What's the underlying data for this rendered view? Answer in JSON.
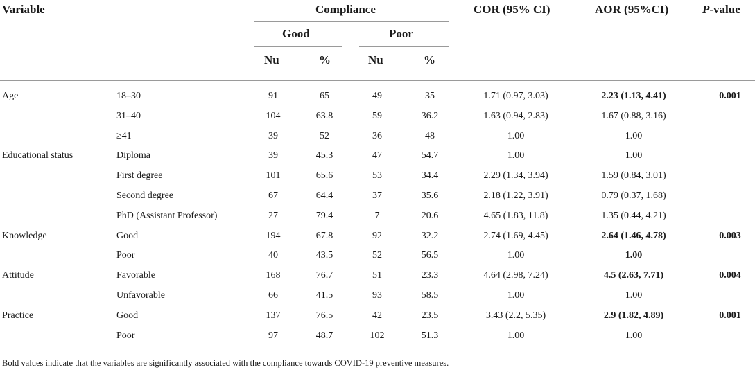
{
  "header": {
    "variable": "Variable",
    "compliance": "Compliance",
    "good": "Good",
    "poor": "Poor",
    "nu": "Nu",
    "pct": "%",
    "cor": "COR (95% CI)",
    "aor": "AOR (95%CI)",
    "pvalue_italic": "P",
    "pvalue_rest": "-value"
  },
  "rows": [
    {
      "variable": "Age",
      "category": "18–30",
      "good_n": "91",
      "good_pct": "65",
      "poor_n": "49",
      "poor_pct": "35",
      "cor": "1.71 (0.97, 3.03)",
      "aor": "2.23 (1.13, 4.41)",
      "p": "0.001",
      "aor_bold": true
    },
    {
      "variable": "",
      "category": "31–40",
      "good_n": "104",
      "good_pct": "63.8",
      "poor_n": "59",
      "poor_pct": "36.2",
      "cor": "1.63 (0.94, 2.83)",
      "aor": "1.67 (0.88, 3.16)",
      "p": "",
      "aor_bold": false
    },
    {
      "variable": "",
      "category": "≥41",
      "good_n": "39",
      "good_pct": "52",
      "poor_n": "36",
      "poor_pct": "48",
      "cor": "1.00",
      "aor": "1.00",
      "p": "",
      "aor_bold": false
    },
    {
      "variable": "Educational status",
      "category": "Diploma",
      "good_n": "39",
      "good_pct": "45.3",
      "poor_n": "47",
      "poor_pct": "54.7",
      "cor": "1.00",
      "aor": "1.00",
      "p": "",
      "aor_bold": false
    },
    {
      "variable": "",
      "category": "First degree",
      "good_n": "101",
      "good_pct": "65.6",
      "poor_n": "53",
      "poor_pct": "34.4",
      "cor": "2.29 (1.34, 3.94)",
      "aor": "1.59 (0.84, 3.01)",
      "p": "",
      "aor_bold": false
    },
    {
      "variable": "",
      "category": "Second degree",
      "good_n": "67",
      "good_pct": "64.4",
      "poor_n": "37",
      "poor_pct": "35.6",
      "cor": "2.18 (1.22, 3.91)",
      "aor": "0.79 (0.37, 1.68)",
      "p": "",
      "aor_bold": false
    },
    {
      "variable": "",
      "category": "PhD (Assistant Professor)",
      "good_n": "27",
      "good_pct": "79.4",
      "poor_n": "7",
      "poor_pct": "20.6",
      "cor": "4.65 (1.83, 11.8)",
      "aor": "1.35 (0.44, 4.21)",
      "p": "",
      "aor_bold": false
    },
    {
      "variable": "Knowledge",
      "category": "Good",
      "good_n": "194",
      "good_pct": "67.8",
      "poor_n": "92",
      "poor_pct": "32.2",
      "cor": "2.74 (1.69, 4.45)",
      "aor": "2.64 (1.46, 4.78)",
      "p": "0.003",
      "aor_bold": true
    },
    {
      "variable": "",
      "category": "Poor",
      "good_n": "40",
      "good_pct": "43.5",
      "poor_n": "52",
      "poor_pct": "56.5",
      "cor": "1.00",
      "aor": "1.00",
      "p": "",
      "aor_bold": true
    },
    {
      "variable": "Attitude",
      "category": "Favorable",
      "good_n": "168",
      "good_pct": "76.7",
      "poor_n": "51",
      "poor_pct": "23.3",
      "cor": "4.64 (2.98, 7.24)",
      "aor": "4.5 (2.63, 7.71)",
      "p": "0.004",
      "aor_bold": true
    },
    {
      "variable": "",
      "category": "Unfavorable",
      "good_n": "66",
      "good_pct": "41.5",
      "poor_n": "93",
      "poor_pct": "58.5",
      "cor": "1.00",
      "aor": "1.00",
      "p": "",
      "aor_bold": false
    },
    {
      "variable": "Practice",
      "category": "Good",
      "good_n": "137",
      "good_pct": "76.5",
      "poor_n": "42",
      "poor_pct": "23.5",
      "cor": "3.43 (2.2, 5.35)",
      "aor": "2.9 (1.82, 4.89)",
      "p": "0.001",
      "aor_bold": true
    },
    {
      "variable": "",
      "category": "Poor",
      "good_n": "97",
      "good_pct": "48.7",
      "poor_n": "102",
      "poor_pct": "51.3",
      "cor": "1.00",
      "aor": "1.00",
      "p": "",
      "aor_bold": false
    }
  ],
  "footnote": "Bold values indicate that the variables are significantly associated with the compliance towards COVID-19 preventive measures."
}
